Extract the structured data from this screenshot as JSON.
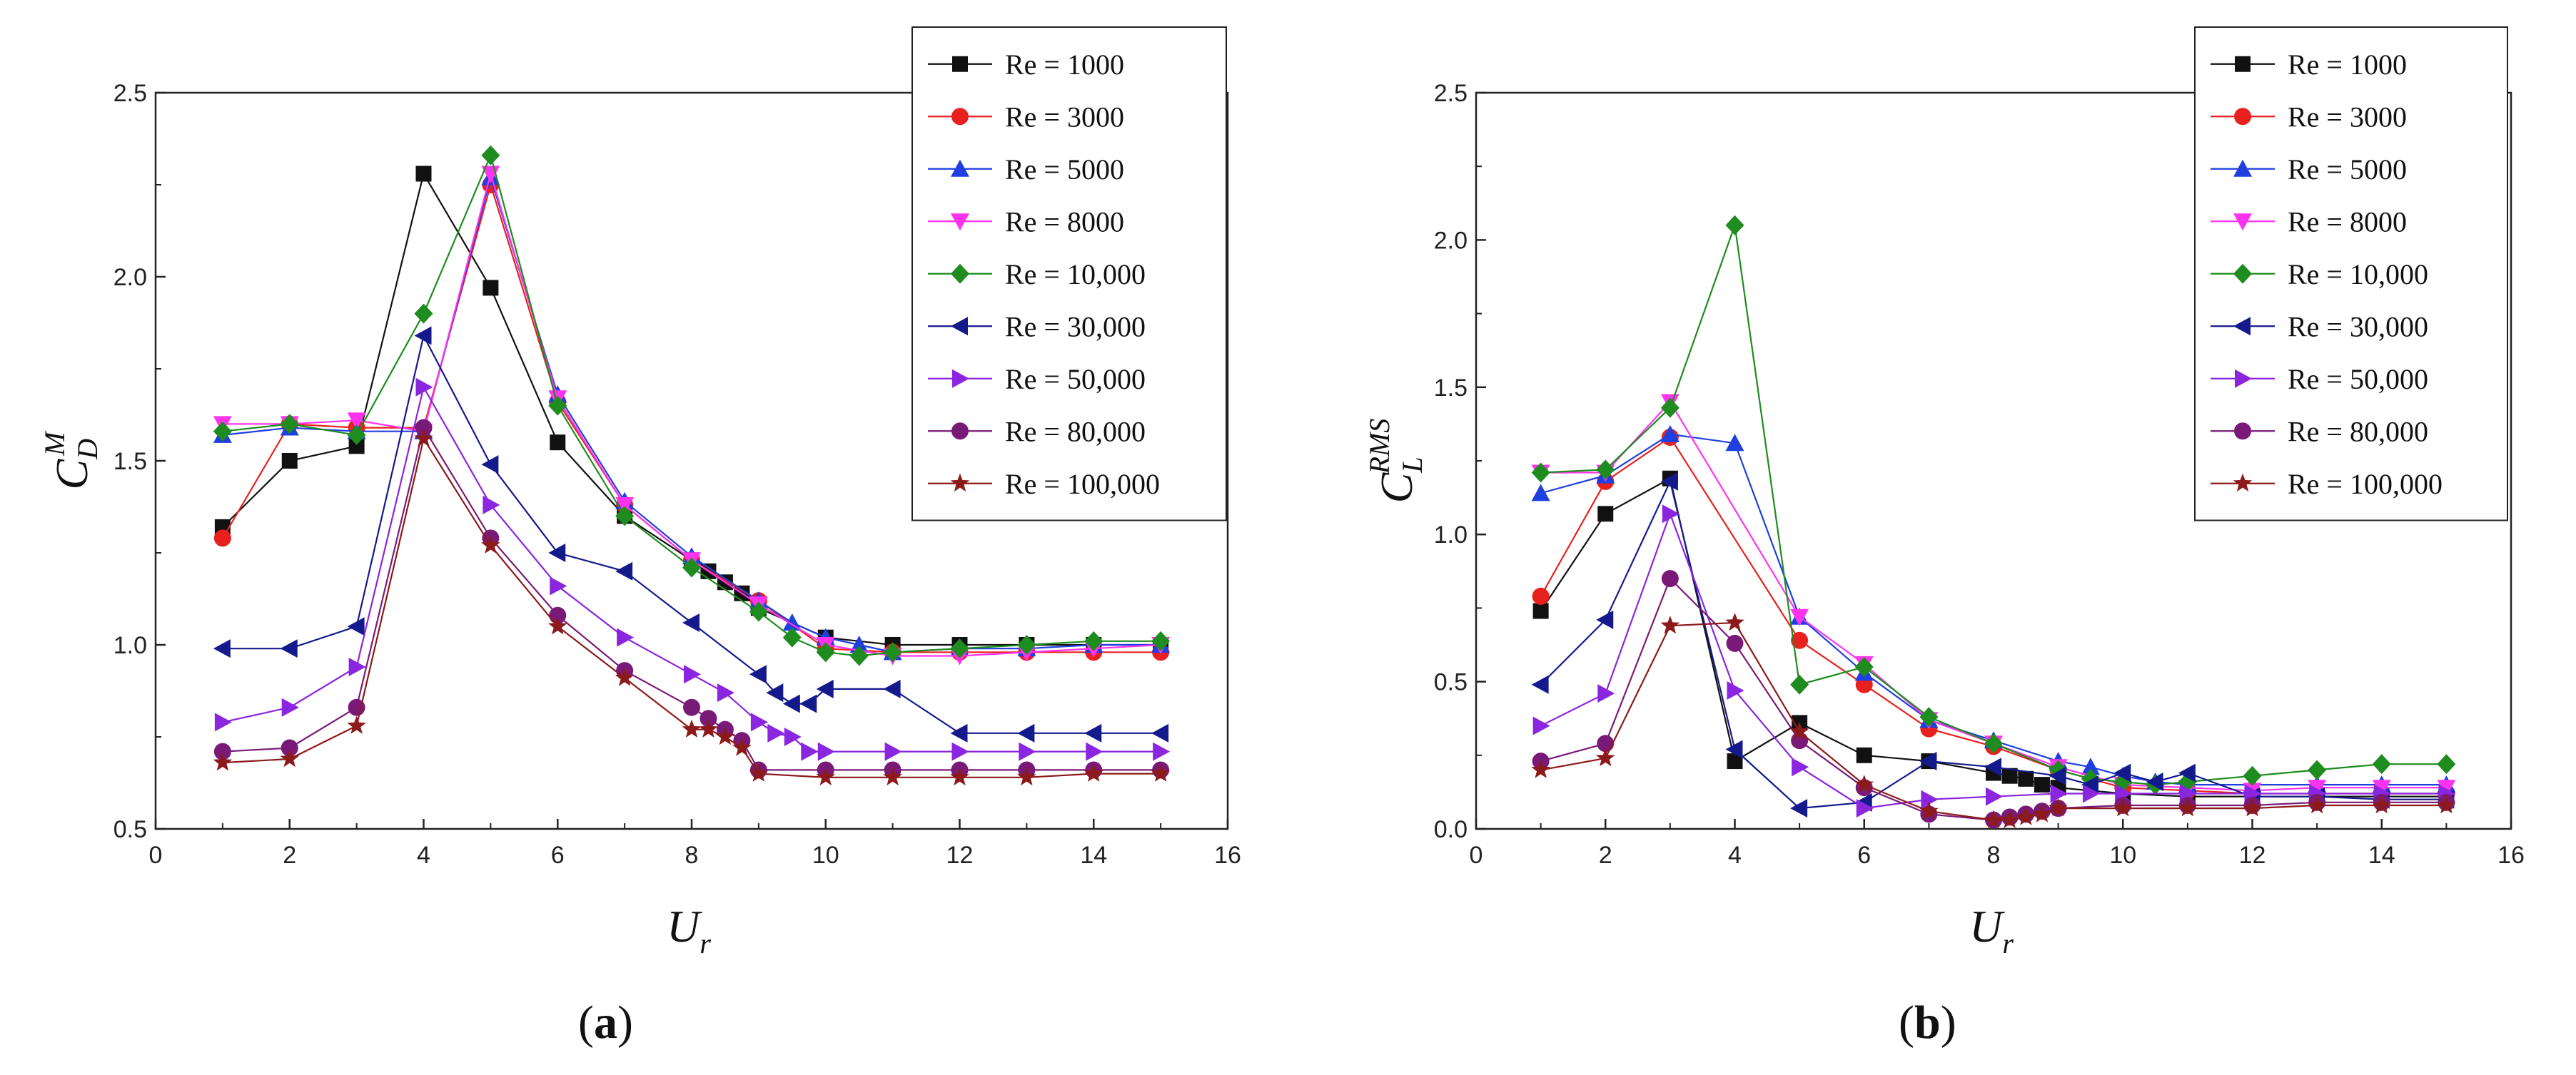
{
  "chart_data": [
    {
      "type": "line",
      "panel_label": "(a)",
      "panel_letter": "a",
      "ylabel_main": "C",
      "ylabel_sub": "D",
      "ylabel_sup": "M",
      "xlabel_main": "U",
      "xlabel_sub": "r",
      "xlim": [
        0,
        16
      ],
      "ylim": [
        0.5,
        2.5
      ],
      "xticks": [
        0,
        2,
        4,
        6,
        8,
        10,
        12,
        14,
        16
      ],
      "yticks": [
        0.5,
        1.0,
        1.5,
        2.0,
        2.5
      ],
      "xtick_labels": [
        "0",
        "2",
        "4",
        "6",
        "8",
        "10",
        "12",
        "14",
        "16"
      ],
      "ytick_labels": [
        "0.5",
        "1.0",
        "1.5",
        "2.0",
        "2.5"
      ],
      "grid": false,
      "legend_position": "top-right",
      "series": [
        {
          "name": "Re = 1000",
          "color": "#111111",
          "marker": "square",
          "x": [
            1,
            2,
            3,
            4,
            5,
            6,
            7,
            8,
            8.25,
            8.5,
            8.75,
            9,
            10,
            11,
            12,
            13,
            14,
            15
          ],
          "y": [
            1.32,
            1.5,
            1.54,
            2.28,
            1.97,
            1.55,
            1.35,
            1.23,
            1.2,
            1.17,
            1.14,
            1.1,
            1.02,
            1.0,
            1.0,
            1.0,
            1.0,
            1.0
          ]
        },
        {
          "name": "Re = 3000",
          "color": "#e8211f",
          "marker": "circle",
          "x": [
            1,
            2,
            3,
            4,
            5,
            6,
            7,
            8,
            9,
            10,
            11,
            12,
            13,
            14,
            15
          ],
          "y": [
            1.29,
            1.6,
            1.59,
            1.59,
            2.25,
            1.66,
            1.38,
            1.23,
            1.12,
            0.99,
            0.98,
            0.98,
            0.98,
            0.98,
            0.98
          ]
        },
        {
          "name": "Re = 5000",
          "color": "#1f3fe0",
          "marker": "triangle-up",
          "x": [
            1,
            2,
            3,
            4,
            5,
            6,
            7,
            8,
            9,
            9.5,
            10,
            10.5,
            11,
            12,
            13,
            14,
            15
          ],
          "y": [
            1.57,
            1.59,
            1.58,
            1.58,
            2.27,
            1.68,
            1.39,
            1.24,
            1.12,
            1.06,
            1.02,
            1.0,
            0.98,
            0.99,
            0.99,
            1.0,
            1.0
          ]
        },
        {
          "name": "Re = 8000",
          "color": "#ff33ee",
          "marker": "triangle-down",
          "x": [
            1,
            2,
            3,
            4,
            5,
            6,
            7,
            8,
            9,
            10,
            11,
            12,
            13,
            14,
            15
          ],
          "y": [
            1.6,
            1.6,
            1.61,
            1.58,
            2.28,
            1.67,
            1.38,
            1.23,
            1.11,
            1.0,
            0.97,
            0.97,
            0.98,
            0.99,
            1.0
          ]
        },
        {
          "name": "Re = 10,000",
          "color": "#1e8c1e",
          "marker": "diamond",
          "x": [
            1,
            2,
            3,
            4,
            5,
            6,
            7,
            8,
            9,
            9.5,
            10,
            10.5,
            11,
            12,
            13,
            14,
            15
          ],
          "y": [
            1.58,
            1.6,
            1.57,
            1.9,
            2.33,
            1.65,
            1.35,
            1.21,
            1.09,
            1.02,
            0.98,
            0.97,
            0.98,
            0.99,
            1.0,
            1.01,
            1.01
          ]
        },
        {
          "name": "Re = 30,000",
          "color": "#141a8c",
          "marker": "triangle-left",
          "x": [
            1,
            2,
            3,
            4,
            5,
            6,
            7,
            8,
            9,
            9.25,
            9.5,
            9.75,
            10,
            11,
            12,
            13,
            14,
            15
          ],
          "y": [
            0.99,
            0.99,
            1.05,
            1.84,
            1.49,
            1.25,
            1.2,
            1.06,
            0.92,
            0.87,
            0.84,
            0.84,
            0.88,
            0.88,
            0.76,
            0.76,
            0.76,
            0.76
          ]
        },
        {
          "name": "Re = 50,000",
          "color": "#8a25e0",
          "marker": "triangle-right",
          "x": [
            1,
            2,
            3,
            4,
            5,
            6,
            7,
            8,
            8.5,
            9,
            9.25,
            9.5,
            9.75,
            10,
            11,
            12,
            13,
            14,
            15
          ],
          "y": [
            0.79,
            0.83,
            0.94,
            1.7,
            1.38,
            1.16,
            1.02,
            0.92,
            0.87,
            0.79,
            0.76,
            0.75,
            0.71,
            0.71,
            0.71,
            0.71,
            0.71,
            0.71,
            0.71
          ]
        },
        {
          "name": "Re = 80,000",
          "color": "#7a1a78",
          "marker": "circle",
          "x": [
            1,
            2,
            3,
            4,
            5,
            6,
            7,
            8,
            8.25,
            8.5,
            8.75,
            9,
            10,
            11,
            12,
            13,
            14,
            15
          ],
          "y": [
            0.71,
            0.72,
            0.83,
            1.59,
            1.29,
            1.08,
            0.93,
            0.83,
            0.8,
            0.77,
            0.74,
            0.66,
            0.66,
            0.66,
            0.66,
            0.66,
            0.66,
            0.66
          ]
        },
        {
          "name": "Re = 100,000",
          "color": "#8c1a1a",
          "marker": "star",
          "x": [
            1,
            2,
            3,
            4,
            5,
            6,
            7,
            8,
            8.25,
            8.5,
            8.75,
            9,
            10,
            11,
            12,
            13,
            14,
            15
          ],
          "y": [
            0.68,
            0.69,
            0.78,
            1.56,
            1.27,
            1.05,
            0.91,
            0.77,
            0.77,
            0.75,
            0.72,
            0.65,
            0.64,
            0.64,
            0.64,
            0.64,
            0.65,
            0.65
          ]
        }
      ]
    },
    {
      "type": "line",
      "panel_label": "(b)",
      "panel_letter": "b",
      "ylabel_main": "C",
      "ylabel_sub": "L",
      "ylabel_sup": "RMS",
      "xlabel_main": "U",
      "xlabel_sub": "r",
      "xlim": [
        0,
        16
      ],
      "ylim": [
        0,
        2.5
      ],
      "xticks": [
        0,
        2,
        4,
        6,
        8,
        10,
        12,
        14,
        16
      ],
      "yticks": [
        0.0,
        0.5,
        1.0,
        1.5,
        2.0,
        2.5
      ],
      "xtick_labels": [
        "0",
        "2",
        "4",
        "6",
        "8",
        "10",
        "12",
        "14",
        "16"
      ],
      "ytick_labels": [
        "0.0",
        "0.5",
        "1.0",
        "1.5",
        "2.0",
        "2.5"
      ],
      "grid": false,
      "legend_position": "top-right",
      "series": [
        {
          "name": "Re = 1000",
          "color": "#111111",
          "marker": "square",
          "x": [
            1,
            2,
            3,
            4,
            5,
            6,
            7,
            8,
            8.25,
            8.5,
            8.75,
            9,
            10,
            11,
            12,
            13,
            14,
            15
          ],
          "y": [
            0.74,
            1.07,
            1.19,
            0.23,
            0.36,
            0.25,
            0.23,
            0.19,
            0.18,
            0.17,
            0.15,
            0.14,
            0.12,
            0.11,
            0.11,
            0.11,
            0.11,
            0.11
          ]
        },
        {
          "name": "Re = 3000",
          "color": "#e8211f",
          "marker": "circle",
          "x": [
            1,
            2,
            3,
            5,
            6,
            7,
            8,
            9,
            10,
            11,
            12,
            13,
            14,
            15
          ],
          "y": [
            0.79,
            1.18,
            1.33,
            0.64,
            0.49,
            0.34,
            0.28,
            0.2,
            0.14,
            0.13,
            0.12,
            0.12,
            0.12,
            0.12
          ]
        },
        {
          "name": "Re = 5000",
          "color": "#1f3fe0",
          "marker": "triangle-up",
          "x": [
            1,
            2,
            3,
            4,
            5,
            6,
            7,
            8,
            9,
            9.5,
            10,
            10.5,
            11,
            12,
            13,
            14,
            15
          ],
          "y": [
            1.14,
            1.2,
            1.34,
            1.31,
            0.72,
            0.53,
            0.37,
            0.3,
            0.23,
            0.21,
            0.18,
            0.16,
            0.15,
            0.15,
            0.15,
            0.15,
            0.15
          ]
        },
        {
          "name": "Re = 8000",
          "color": "#ff33ee",
          "marker": "triangle-down",
          "x": [
            1,
            2,
            3,
            5,
            6,
            7,
            8,
            9,
            10,
            11,
            12,
            13,
            14,
            15
          ],
          "y": [
            1.21,
            1.21,
            1.45,
            0.72,
            0.56,
            0.37,
            0.29,
            0.21,
            0.15,
            0.14,
            0.13,
            0.14,
            0.14,
            0.14
          ]
        },
        {
          "name": "Re = 10,000",
          "color": "#1e8c1e",
          "marker": "diamond",
          "x": [
            1,
            2,
            3,
            4,
            5,
            6,
            7,
            8,
            9,
            9.5,
            10,
            10.5,
            11,
            12,
            13,
            14,
            15
          ],
          "y": [
            1.21,
            1.22,
            1.43,
            2.05,
            0.49,
            0.55,
            0.38,
            0.29,
            0.2,
            0.17,
            0.16,
            0.15,
            0.16,
            0.18,
            0.2,
            0.22,
            0.22
          ]
        },
        {
          "name": "Re = 30,000",
          "color": "#141a8c",
          "marker": "triangle-left",
          "x": [
            1,
            2,
            3,
            4,
            5,
            6,
            7,
            8,
            9,
            9.5,
            10,
            10.5,
            11,
            12,
            13,
            14,
            15
          ],
          "y": [
            0.49,
            0.71,
            1.18,
            0.27,
            0.07,
            0.09,
            0.23,
            0.21,
            0.18,
            0.15,
            0.19,
            0.16,
            0.19,
            0.11,
            0.11,
            0.1,
            0.1
          ]
        },
        {
          "name": "Re = 50,000",
          "color": "#8a25e0",
          "marker": "triangle-right",
          "x": [
            1,
            2,
            3,
            4,
            5,
            6,
            7,
            8,
            9,
            9.5,
            10,
            11,
            12,
            13,
            14,
            15
          ],
          "y": [
            0.35,
            0.46,
            1.07,
            0.47,
            0.21,
            0.07,
            0.1,
            0.11,
            0.12,
            0.12,
            0.12,
            0.12,
            0.12,
            0.12,
            0.12,
            0.12
          ]
        },
        {
          "name": "Re = 80,000",
          "color": "#7a1a78",
          "marker": "circle",
          "x": [
            1,
            2,
            3,
            4,
            5,
            6,
            7,
            8,
            8.25,
            8.5,
            8.75,
            9,
            10,
            11,
            12,
            13,
            14,
            15
          ],
          "y": [
            0.23,
            0.29,
            0.85,
            0.63,
            0.3,
            0.14,
            0.05,
            0.03,
            0.04,
            0.05,
            0.06,
            0.07,
            0.08,
            0.08,
            0.08,
            0.09,
            0.09,
            0.09
          ]
        },
        {
          "name": "Re = 100,000",
          "color": "#8c1a1a",
          "marker": "star",
          "x": [
            1,
            2,
            3,
            4,
            5,
            6,
            7,
            8,
            8.25,
            8.5,
            8.75,
            9,
            10,
            11,
            12,
            13,
            14,
            15
          ],
          "y": [
            0.2,
            0.24,
            0.69,
            0.7,
            0.33,
            0.15,
            0.06,
            0.03,
            0.03,
            0.04,
            0.05,
            0.07,
            0.07,
            0.07,
            0.07,
            0.08,
            0.08,
            0.08
          ]
        }
      ]
    }
  ]
}
